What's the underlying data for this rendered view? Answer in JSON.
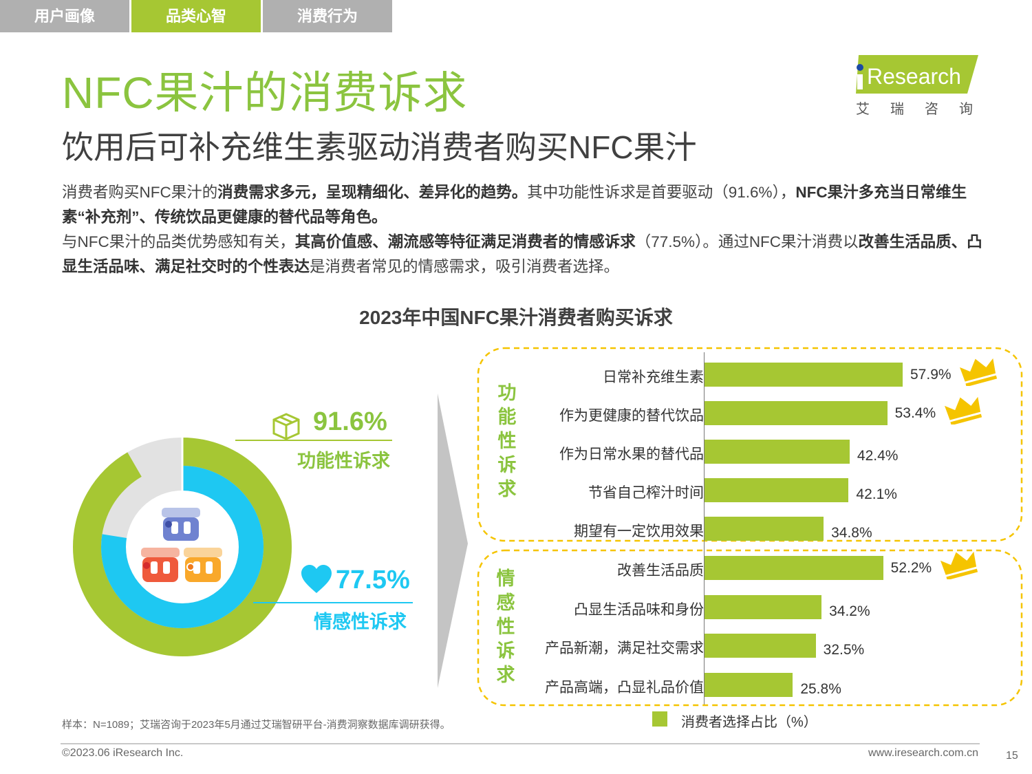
{
  "tabs": [
    {
      "label": "用户画像",
      "active": false
    },
    {
      "label": "品类心智",
      "active": true
    },
    {
      "label": "消费行为",
      "active": false
    }
  ],
  "title": "NFC果汁的消费诉求",
  "subtitle": "饮用后可补充维生素驱动消费者购买NFC果汁",
  "logo": {
    "brand": "iResearch",
    "brand_cn": "艾瑞咨询"
  },
  "body": {
    "p1_a": "消费者购买NFC果汁的",
    "p1_b": "消费需求多元，呈现精细化、差异化的趋势。",
    "p1_c": "其中功能性诉求是首要驱动（91.6%），",
    "p1_d": "NFC果汁多充当日常维生素“补充剂”、传统饮品更健康的替代品等角色。",
    "p2_a": "与NFC果汁的品类优势感知有关，",
    "p2_b": "其高价值感、潮流感等特征满足消费者的情感诉求",
    "p2_c": "（77.5%）。通过NFC果汁消费以",
    "p2_d": "改善生活品质、凸显生活品味、满足社交时的个性表达",
    "p2_e": "是消费者常见的情感需求，吸引消费者选择。"
  },
  "chart_title": "2023年中国NFC果汁消费者购买诉求",
  "donut": {
    "outer_value": 91.6,
    "inner_value": 77.5,
    "outer_label": "91.6%",
    "outer_name": "功能性诉求",
    "inner_label": "77.5%",
    "inner_name": "情感性诉求",
    "colors": {
      "outer": "#a6c733",
      "inner": "#1ec8f2",
      "rest": "#e2e2e2"
    }
  },
  "chart_data": {
    "type": "bar",
    "orientation": "horizontal",
    "title": "2023年中国NFC果汁消费者购买诉求",
    "groups": [
      {
        "name": "功能性诉求",
        "label_chars": [
          "功",
          "能",
          "性",
          "诉",
          "求"
        ],
        "items": [
          {
            "label": "日常补充维生素",
            "value": 57.9,
            "display": "57.9%",
            "crown": true
          },
          {
            "label": "作为更健康的替代饮品",
            "value": 53.4,
            "display": "53.4%",
            "crown": true
          },
          {
            "label": "作为日常水果的替代品",
            "value": 42.4,
            "display": "42.4%",
            "crown": false
          },
          {
            "label": "节省自己榨汁时间",
            "value": 42.1,
            "display": "42.1%",
            "crown": false
          },
          {
            "label": "期望有一定饮用效果",
            "value": 34.8,
            "display": "34.8%",
            "crown": false
          }
        ]
      },
      {
        "name": "情感性诉求",
        "label_chars": [
          "情",
          "感",
          "性",
          "诉",
          "求"
        ],
        "items": [
          {
            "label": "改善生活品质",
            "value": 52.2,
            "display": "52.2%",
            "crown": true
          },
          {
            "label": "凸显生活品味和身份",
            "value": 34.2,
            "display": "34.2%",
            "crown": false
          },
          {
            "label": "产品新潮，满足社交需求",
            "value": 32.5,
            "display": "32.5%",
            "crown": false
          },
          {
            "label": "产品高端，凸显礼品价值",
            "value": 25.8,
            "display": "25.8%",
            "crown": false
          }
        ]
      }
    ],
    "legend": "消费者选择占比（%）",
    "bar_color": "#a6c733",
    "accent_color": "#f5c400"
  },
  "note": "样本：N=1089；艾瑞咨询于2023年5月通过艾瑞智研平台-消费洞察数据库调研获得。",
  "footer": {
    "copyright": "©2023.06 iResearch Inc.",
    "site": "www.iresearch.com.cn",
    "page": "15"
  }
}
